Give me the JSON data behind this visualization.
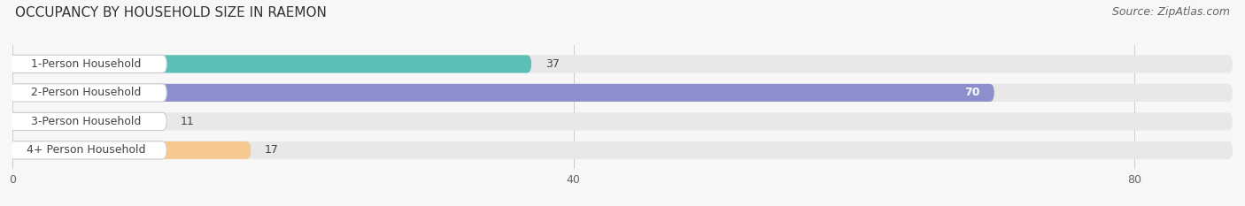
{
  "title": "OCCUPANCY BY HOUSEHOLD SIZE IN RAEMON",
  "source": "Source: ZipAtlas.com",
  "categories": [
    "1-Person Household",
    "2-Person Household",
    "3-Person Household",
    "4+ Person Household"
  ],
  "values": [
    37,
    70,
    11,
    17
  ],
  "bar_colors": [
    "#5BBFB5",
    "#8B8FCC",
    "#F2A8B8",
    "#F5C990"
  ],
  "bar_bg_color": "#E8E8E8",
  "value_color_inside": [
    "#333333",
    "#ffffff",
    "#333333",
    "#333333"
  ],
  "xlim": [
    0,
    87
  ],
  "xticks": [
    0,
    40,
    80
  ],
  "title_fontsize": 11,
  "source_fontsize": 9,
  "label_fontsize": 9,
  "value_fontsize": 9,
  "background_color": "#F7F7F7",
  "bar_bg_max": 87
}
